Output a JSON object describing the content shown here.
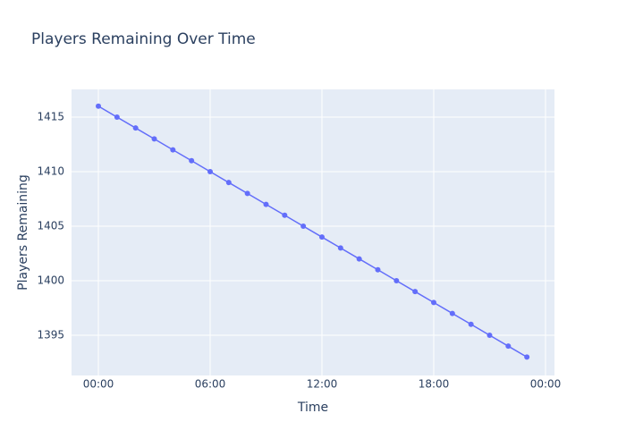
{
  "chart_data": {
    "type": "line",
    "title": "Players Remaining Over Time",
    "x_label": "Time",
    "y_label": "Players Remaining",
    "x": [
      0,
      1,
      2,
      3,
      4,
      5,
      6,
      7,
      8,
      9,
      10,
      11,
      12,
      13,
      14,
      15,
      16,
      17,
      18,
      19,
      20,
      21,
      22,
      23
    ],
    "series": [
      {
        "name": "Players Remaining",
        "color": "#636efa",
        "values": [
          1416,
          1415,
          1414,
          1413,
          1412,
          1411,
          1410,
          1409,
          1408,
          1407,
          1406,
          1405,
          1404,
          1403,
          1402,
          1401,
          1400,
          1399,
          1398,
          1397,
          1396,
          1395,
          1394,
          1393
        ]
      }
    ],
    "xlim": [
      -1.44,
      24.48
    ],
    "xticks": [
      {
        "value": 0,
        "label": "00:00"
      },
      {
        "value": 6,
        "label": "06:00"
      },
      {
        "value": 12,
        "label": "12:00"
      },
      {
        "value": 18,
        "label": "18:00"
      },
      {
        "value": 24,
        "label": "00:00"
      }
    ],
    "ylim": [
      1391.31,
      1417.54
    ],
    "yticks": [
      1395,
      1400,
      1405,
      1410,
      1415
    ],
    "grid": true
  }
}
